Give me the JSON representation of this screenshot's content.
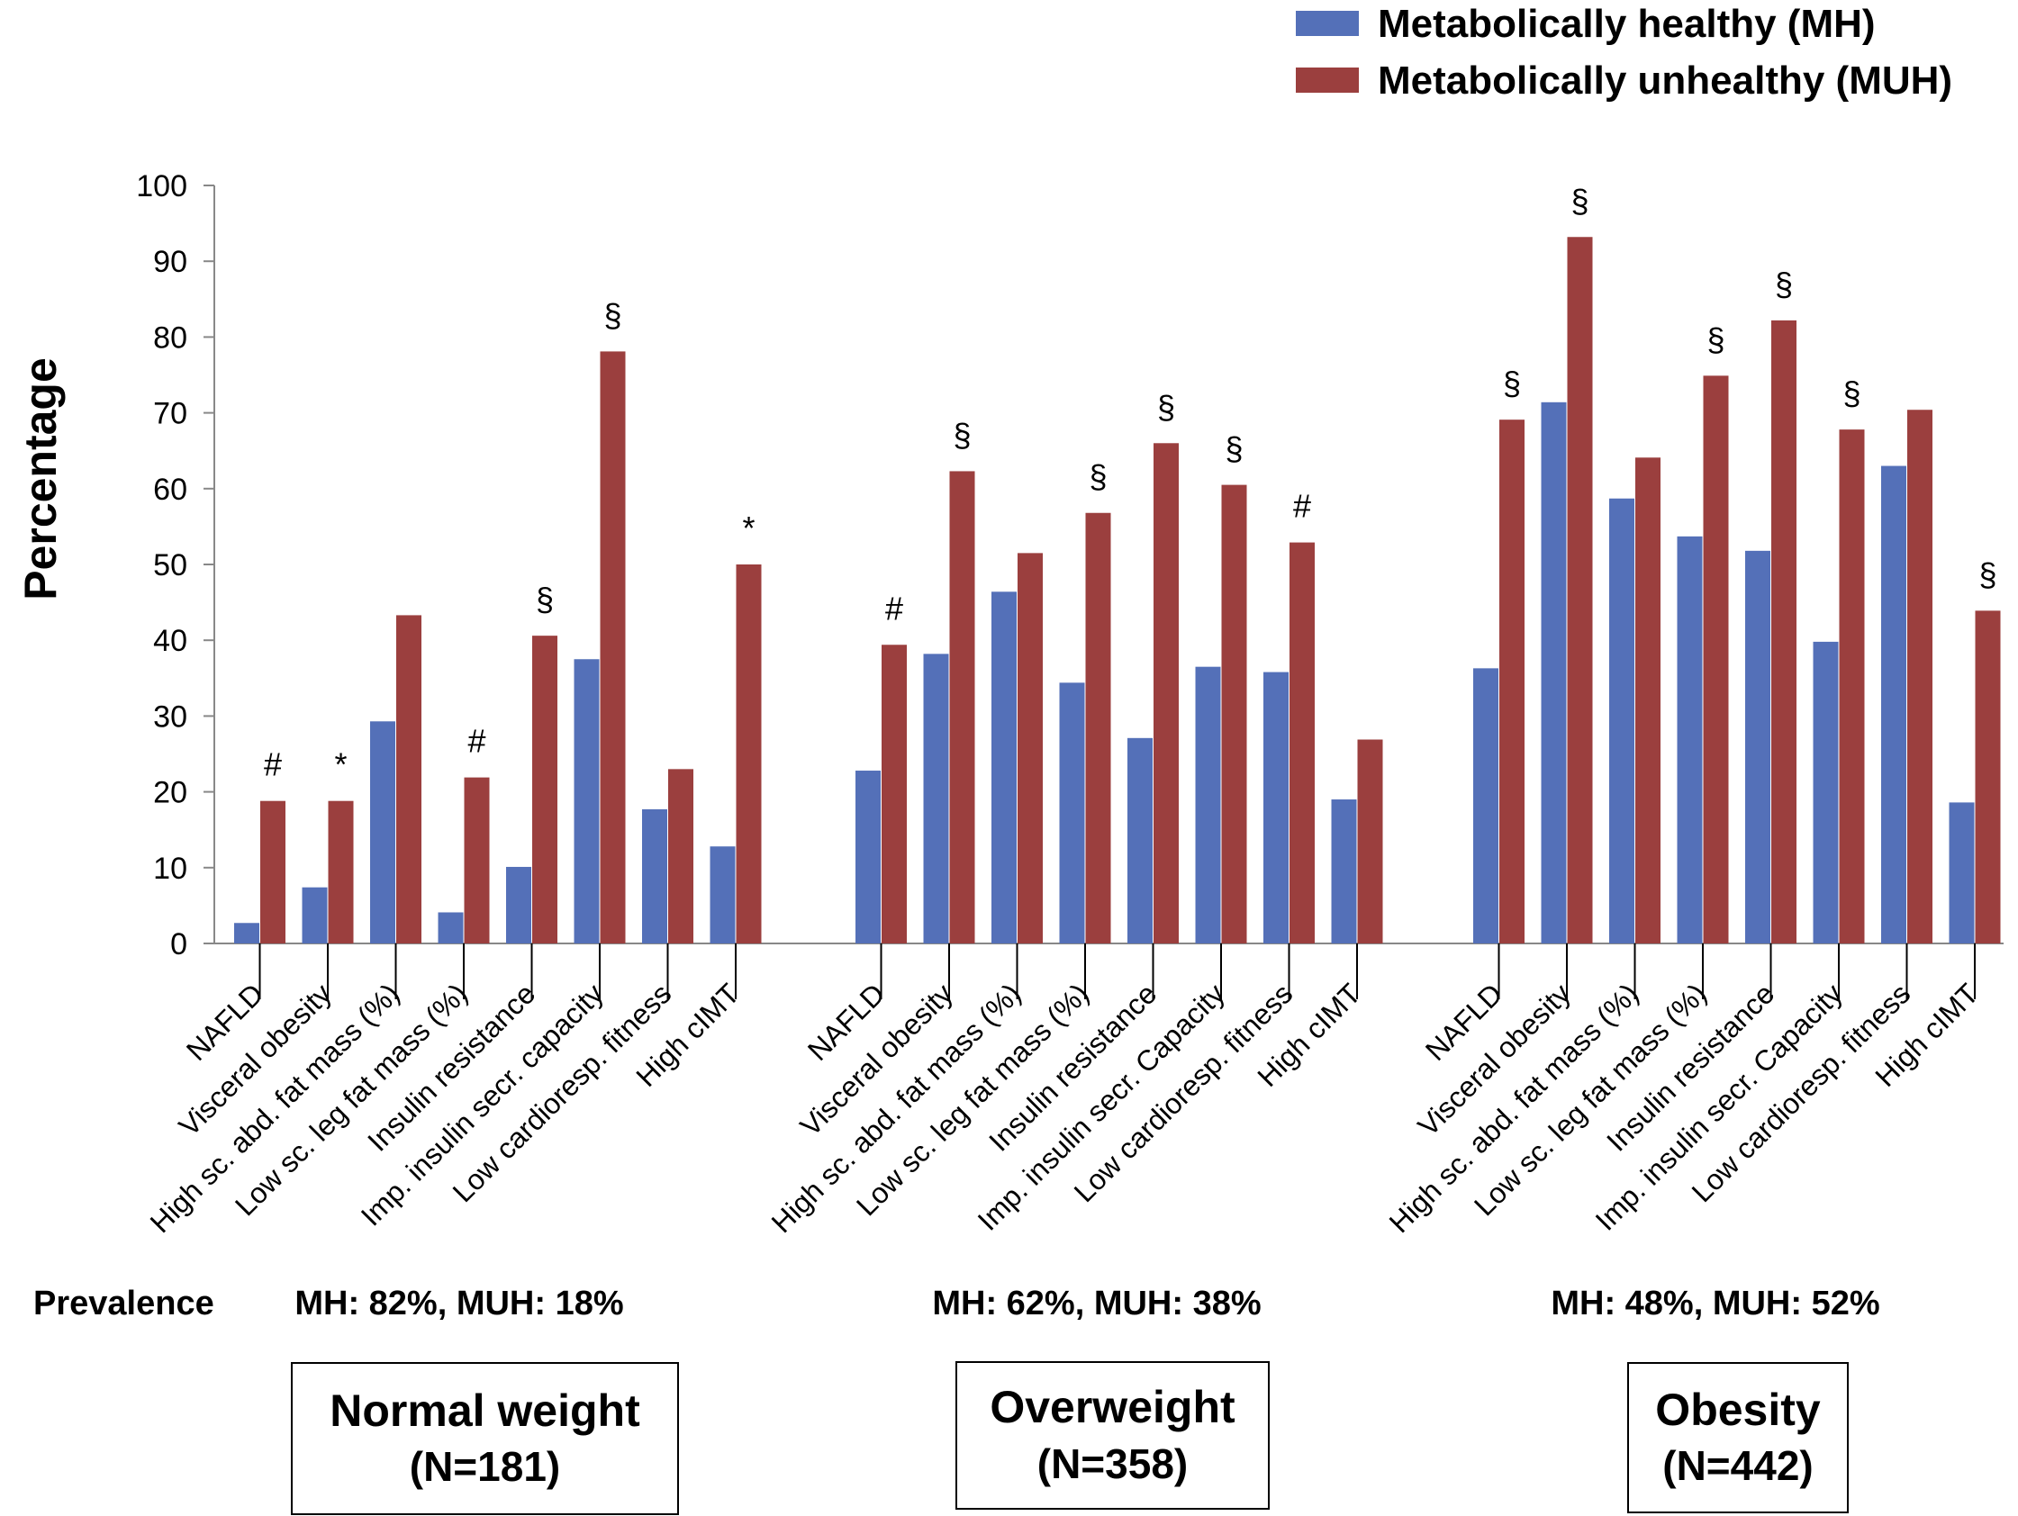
{
  "chart_data": {
    "type": "bar",
    "ylabel": "Percentage",
    "ylim": [
      0,
      100
    ],
    "yticks": [
      0,
      10,
      20,
      30,
      40,
      50,
      60,
      70,
      80,
      90,
      100
    ],
    "grid": false,
    "legend_position": "top-right",
    "series": [
      {
        "name": "Metabolically healthy (MH)",
        "color": "#5470b8"
      },
      {
        "name": "Metabolically unhealthy (MUH)",
        "color": "#9b3f3e"
      }
    ],
    "prevalence_label": "Prevalence",
    "groups": [
      {
        "name": "Normal weight",
        "n": "(N=181)",
        "prevalence": "MH: 82%, MUH: 18%",
        "categories": [
          "NAFLD",
          "Visceral obesity",
          "High sc. abd. fat mass (%)",
          "Low sc. leg fat mass (%)",
          "Insulin resistance",
          "Imp. insulin secr. capacity",
          "Low cardioresp. fitness",
          "High cIMT"
        ],
        "mh": [
          2.7,
          7.4,
          29.3,
          4.1,
          10.1,
          37.5,
          17.7,
          12.8
        ],
        "muh": [
          18.8,
          18.8,
          43.3,
          21.9,
          40.6,
          78.1,
          23.0,
          50.0
        ],
        "significance": [
          "#",
          "*",
          "",
          "#",
          "§",
          "§",
          "",
          "*"
        ]
      },
      {
        "name": "Overweight",
        "n": "(N=358)",
        "prevalence": "MH: 62%, MUH: 38%",
        "categories": [
          "NAFLD",
          "Visceral obesity",
          "High sc. abd. fat mass (%)",
          "Low sc. leg fat mass (%)",
          "Insulin resistance",
          "Imp. insulin secr. Capacity",
          "Low cardioresp. fitness",
          "High cIMT"
        ],
        "mh": [
          22.8,
          38.2,
          46.4,
          34.4,
          27.1,
          36.5,
          35.8,
          19.0
        ],
        "muh": [
          39.4,
          62.3,
          51.5,
          56.8,
          66.0,
          60.5,
          52.9,
          26.9
        ],
        "significance": [
          "#",
          "§",
          "",
          "§",
          "§",
          "§",
          "#",
          ""
        ]
      },
      {
        "name": "Obesity",
        "n": "(N=442)",
        "prevalence": "MH: 48%, MUH: 52%",
        "categories": [
          "NAFLD",
          "Visceral obesity",
          "High sc. abd. fat mass (%)",
          "Low sc. leg fat mass (%)",
          "Insulin resistance",
          "Imp. insulin secr. Capacity",
          "Low cardioresp. fitness",
          "High cIMT"
        ],
        "mh": [
          36.3,
          71.4,
          58.7,
          53.7,
          51.8,
          39.8,
          63.0,
          18.6
        ],
        "muh": [
          69.1,
          93.2,
          64.1,
          74.9,
          82.2,
          67.8,
          70.4,
          43.9
        ],
        "significance": [
          "§",
          "§",
          "",
          "§",
          "§",
          "§",
          "",
          "§"
        ]
      }
    ]
  }
}
